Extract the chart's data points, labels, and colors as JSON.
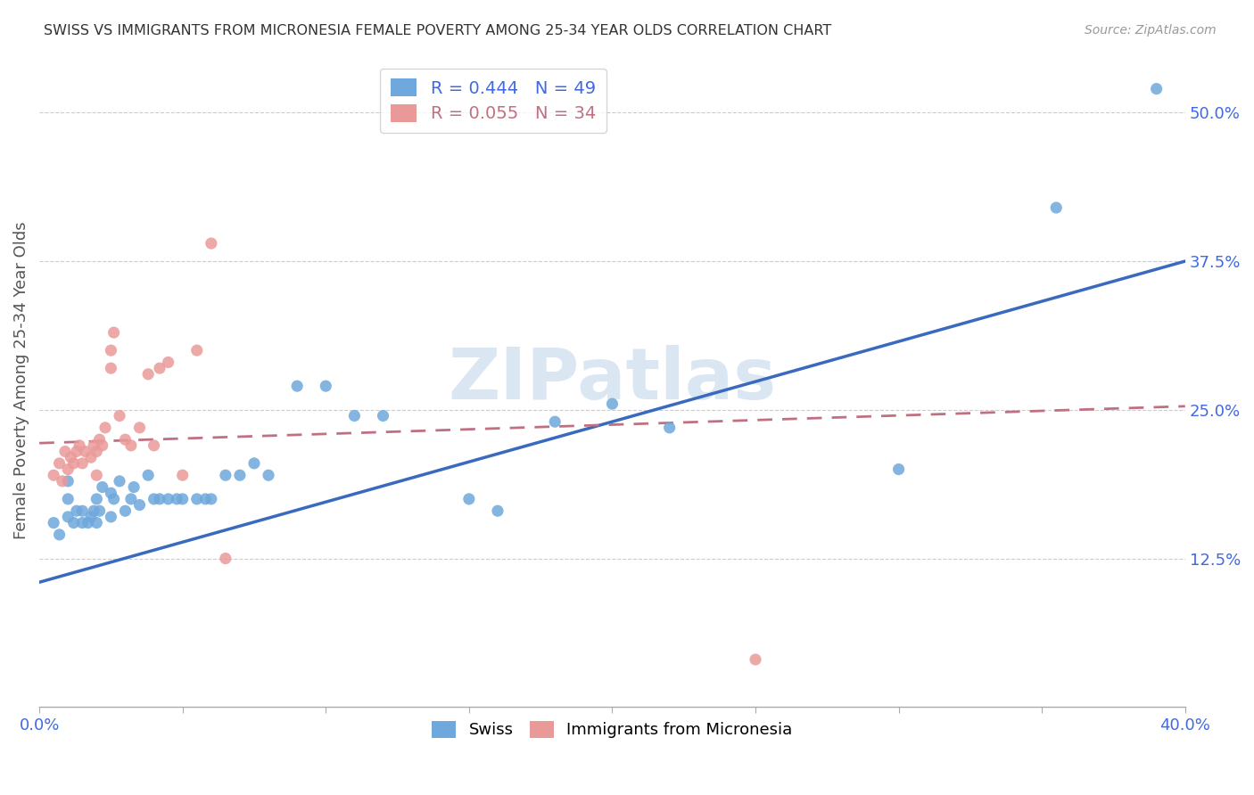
{
  "title": "SWISS VS IMMIGRANTS FROM MICRONESIA FEMALE POVERTY AMONG 25-34 YEAR OLDS CORRELATION CHART",
  "source": "Source: ZipAtlas.com",
  "ylabel": "Female Poverty Among 25-34 Year Olds",
  "xlim": [
    0.0,
    0.4
  ],
  "ylim": [
    0.0,
    0.55
  ],
  "yticks": [
    0.125,
    0.25,
    0.375,
    0.5
  ],
  "ytick_labels": [
    "12.5%",
    "25.0%",
    "37.5%",
    "50.0%"
  ],
  "xticks": [
    0.0,
    0.05,
    0.1,
    0.15,
    0.2,
    0.25,
    0.3,
    0.35,
    0.4
  ],
  "xtick_labels": [
    "0.0%",
    "",
    "",
    "",
    "",
    "",
    "",
    "",
    "40.0%"
  ],
  "swiss_color": "#6fa8dc",
  "micro_color": "#ea9999",
  "swiss_line_color": "#3a6abf",
  "micro_line_color": "#c07080",
  "legend_R_swiss": "R = 0.444",
  "legend_N_swiss": "N = 49",
  "legend_R_micro": "R = 0.055",
  "legend_N_micro": "N = 34",
  "swiss_x": [
    0.005,
    0.007,
    0.01,
    0.01,
    0.01,
    0.012,
    0.013,
    0.015,
    0.015,
    0.017,
    0.018,
    0.019,
    0.02,
    0.02,
    0.021,
    0.022,
    0.025,
    0.025,
    0.026,
    0.028,
    0.03,
    0.032,
    0.033,
    0.035,
    0.038,
    0.04,
    0.042,
    0.045,
    0.048,
    0.05,
    0.055,
    0.058,
    0.06,
    0.065,
    0.07,
    0.075,
    0.08,
    0.09,
    0.1,
    0.11,
    0.12,
    0.15,
    0.16,
    0.18,
    0.2,
    0.22,
    0.3,
    0.355,
    0.39
  ],
  "swiss_y": [
    0.155,
    0.145,
    0.16,
    0.175,
    0.19,
    0.155,
    0.165,
    0.155,
    0.165,
    0.155,
    0.16,
    0.165,
    0.155,
    0.175,
    0.165,
    0.185,
    0.16,
    0.18,
    0.175,
    0.19,
    0.165,
    0.175,
    0.185,
    0.17,
    0.195,
    0.175,
    0.175,
    0.175,
    0.175,
    0.175,
    0.175,
    0.175,
    0.175,
    0.195,
    0.195,
    0.205,
    0.195,
    0.27,
    0.27,
    0.245,
    0.245,
    0.175,
    0.165,
    0.24,
    0.255,
    0.235,
    0.2,
    0.42,
    0.52
  ],
  "micro_x": [
    0.005,
    0.007,
    0.008,
    0.009,
    0.01,
    0.011,
    0.012,
    0.013,
    0.014,
    0.015,
    0.016,
    0.018,
    0.019,
    0.02,
    0.02,
    0.021,
    0.022,
    0.023,
    0.025,
    0.025,
    0.026,
    0.028,
    0.03,
    0.032,
    0.035,
    0.038,
    0.04,
    0.042,
    0.045,
    0.05,
    0.055,
    0.06,
    0.065,
    0.25
  ],
  "micro_y": [
    0.195,
    0.205,
    0.19,
    0.215,
    0.2,
    0.21,
    0.205,
    0.215,
    0.22,
    0.205,
    0.215,
    0.21,
    0.22,
    0.195,
    0.215,
    0.225,
    0.22,
    0.235,
    0.285,
    0.3,
    0.315,
    0.245,
    0.225,
    0.22,
    0.235,
    0.28,
    0.22,
    0.285,
    0.29,
    0.195,
    0.3,
    0.39,
    0.125,
    0.04
  ],
  "swiss_line_x0": 0.0,
  "swiss_line_y0": 0.105,
  "swiss_line_x1": 0.4,
  "swiss_line_y1": 0.375,
  "micro_line_x0": 0.0,
  "micro_line_y0": 0.222,
  "micro_line_x1": 0.4,
  "micro_line_y1": 0.253,
  "watermark": "ZIPatlas",
  "background_color": "#ffffff",
  "grid_color": "#cccccc"
}
